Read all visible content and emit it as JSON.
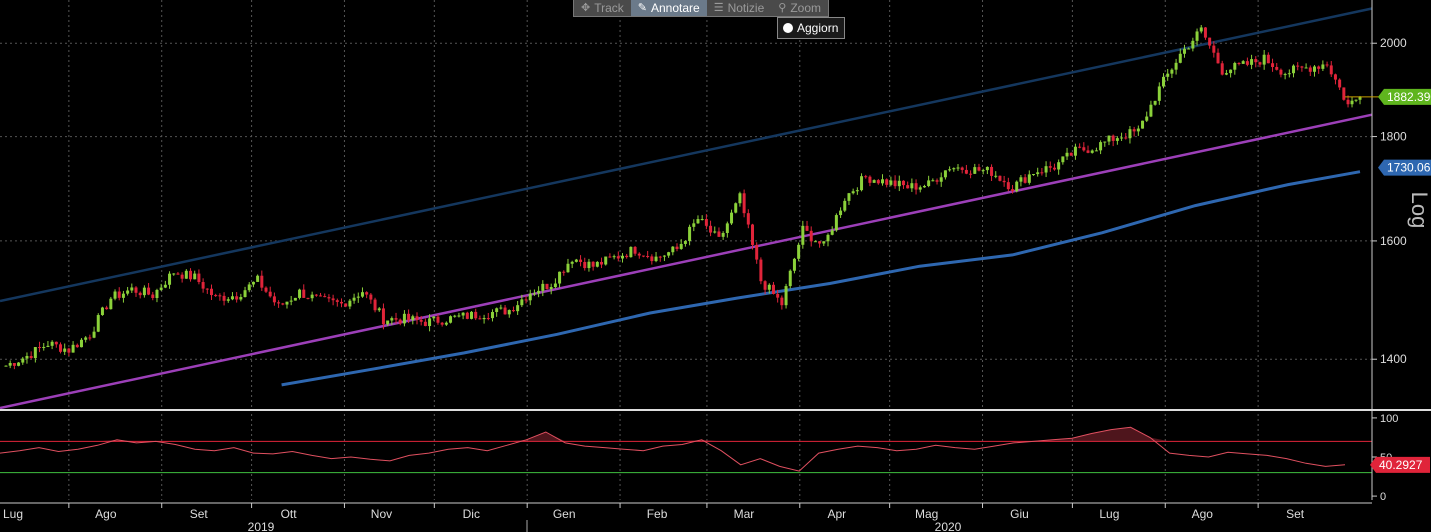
{
  "toolbar": {
    "track_label": "Track",
    "annotate_label": "Annotare",
    "news_label": "Notizie",
    "zoom_label": "Zoom"
  },
  "refresh_label": "Aggiorn",
  "chart_data": [
    {
      "type": "candlestick",
      "title": "",
      "y_ticks": [
        1400,
        1600,
        1800,
        2000
      ],
      "ylim": [
        1325,
        2100
      ],
      "axis_side_label": "Log",
      "x_month_labels": [
        "Lug",
        "Ago",
        "Set",
        "Ott",
        "Nov",
        "Dic",
        "Gen",
        "Feb",
        "Mar",
        "Apr",
        "Mag",
        "Giu",
        "Lug",
        "Ago",
        "Set"
      ],
      "x_year_labels": [
        "2019",
        "2020"
      ],
      "last_price_label": "1882.390",
      "moving_average_label": "1730.06",
      "colors": {
        "up": "#8bd13a",
        "down": "#e0243a",
        "ma": "#2e67b0",
        "upper_channel": "#14375e",
        "lower_channel": "#9c3fb8",
        "last_price_badge": "#5fb51e",
        "ma_badge": "#2e67b0"
      },
      "close_series": [
        {
          "x": "2019-07-01",
          "y": 1390
        },
        {
          "x": "2019-07-08",
          "y": 1405
        },
        {
          "x": "2019-07-15",
          "y": 1425
        },
        {
          "x": "2019-07-22",
          "y": 1415
        },
        {
          "x": "2019-07-29",
          "y": 1440
        },
        {
          "x": "2019-08-05",
          "y": 1500
        },
        {
          "x": "2019-08-12",
          "y": 1515
        },
        {
          "x": "2019-08-19",
          "y": 1505
        },
        {
          "x": "2019-08-26",
          "y": 1545
        },
        {
          "x": "2019-09-02",
          "y": 1535
        },
        {
          "x": "2019-09-09",
          "y": 1500
        },
        {
          "x": "2019-09-16",
          "y": 1505
        },
        {
          "x": "2019-09-23",
          "y": 1530
        },
        {
          "x": "2019-09-30",
          "y": 1485
        },
        {
          "x": "2019-10-07",
          "y": 1510
        },
        {
          "x": "2019-10-14",
          "y": 1495
        },
        {
          "x": "2019-10-21",
          "y": 1490
        },
        {
          "x": "2019-10-28",
          "y": 1512
        },
        {
          "x": "2019-11-04",
          "y": 1465
        },
        {
          "x": "2019-11-11",
          "y": 1465
        },
        {
          "x": "2019-11-18",
          "y": 1460
        },
        {
          "x": "2019-11-25",
          "y": 1465
        },
        {
          "x": "2019-12-02",
          "y": 1470
        },
        {
          "x": "2019-12-09",
          "y": 1475
        },
        {
          "x": "2019-12-16",
          "y": 1480
        },
        {
          "x": "2019-12-23",
          "y": 1510
        },
        {
          "x": "2019-12-30",
          "y": 1525
        },
        {
          "x": "2020-01-06",
          "y": 1570
        },
        {
          "x": "2020-01-13",
          "y": 1555
        },
        {
          "x": "2020-01-20",
          "y": 1570
        },
        {
          "x": "2020-01-27",
          "y": 1585
        },
        {
          "x": "2020-02-03",
          "y": 1570
        },
        {
          "x": "2020-02-10",
          "y": 1585
        },
        {
          "x": "2020-02-17",
          "y": 1640
        },
        {
          "x": "2020-02-24",
          "y": 1600
        },
        {
          "x": "2020-03-02",
          "y": 1680
        },
        {
          "x": "2020-03-09",
          "y": 1530
        },
        {
          "x": "2020-03-16",
          "y": 1490
        },
        {
          "x": "2020-03-23",
          "y": 1620
        },
        {
          "x": "2020-03-30",
          "y": 1590
        },
        {
          "x": "2020-04-06",
          "y": 1680
        },
        {
          "x": "2020-04-13",
          "y": 1720
        },
        {
          "x": "2020-04-20",
          "y": 1710
        },
        {
          "x": "2020-04-27",
          "y": 1700
        },
        {
          "x": "2020-05-04",
          "y": 1705
        },
        {
          "x": "2020-05-11",
          "y": 1740
        },
        {
          "x": "2020-05-18",
          "y": 1735
        },
        {
          "x": "2020-05-25",
          "y": 1730
        },
        {
          "x": "2020-06-01",
          "y": 1700
        },
        {
          "x": "2020-06-08",
          "y": 1730
        },
        {
          "x": "2020-06-15",
          "y": 1740
        },
        {
          "x": "2020-06-22",
          "y": 1770
        },
        {
          "x": "2020-06-29",
          "y": 1780
        },
        {
          "x": "2020-07-06",
          "y": 1800
        },
        {
          "x": "2020-07-13",
          "y": 1810
        },
        {
          "x": "2020-07-20",
          "y": 1900
        },
        {
          "x": "2020-07-27",
          "y": 1975
        },
        {
          "x": "2020-08-03",
          "y": 2030
        },
        {
          "x": "2020-08-10",
          "y": 1940
        },
        {
          "x": "2020-08-17",
          "y": 1950
        },
        {
          "x": "2020-08-24",
          "y": 1965
        },
        {
          "x": "2020-08-31",
          "y": 1935
        },
        {
          "x": "2020-09-07",
          "y": 1945
        },
        {
          "x": "2020-09-14",
          "y": 1955
        },
        {
          "x": "2020-09-21",
          "y": 1865
        },
        {
          "x": "2020-09-25",
          "y": 1882.39
        }
      ],
      "moving_average_series": [
        {
          "x": "2019-10-01",
          "y": 1360
        },
        {
          "x": "2019-11-01",
          "y": 1385
        },
        {
          "x": "2019-12-01",
          "y": 1410
        },
        {
          "x": "2020-01-01",
          "y": 1440
        },
        {
          "x": "2020-02-01",
          "y": 1475
        },
        {
          "x": "2020-03-01",
          "y": 1500
        },
        {
          "x": "2020-04-01",
          "y": 1525
        },
        {
          "x": "2020-05-01",
          "y": 1555
        },
        {
          "x": "2020-06-01",
          "y": 1575
        },
        {
          "x": "2020-07-01",
          "y": 1615
        },
        {
          "x": "2020-08-01",
          "y": 1665
        },
        {
          "x": "2020-09-01",
          "y": 1705
        },
        {
          "x": "2020-09-25",
          "y": 1730.06
        }
      ],
      "channel_lines": [
        {
          "name": "upper",
          "from": {
            "x": "2019-06-29",
            "y": 1495
          },
          "to": {
            "x": "2020-09-29",
            "y": 2080
          }
        },
        {
          "name": "lower",
          "from": {
            "x": "2019-06-29",
            "y": 1325
          },
          "to": {
            "x": "2020-09-29",
            "y": 1845
          }
        }
      ]
    },
    {
      "type": "line",
      "indicator": "RSI",
      "y_ticks": [
        0,
        50,
        100
      ],
      "ylim": [
        -5,
        105
      ],
      "overbought": 70,
      "oversold": 30,
      "last_value_label": "40.2927",
      "values": [
        55,
        58,
        62,
        57,
        60,
        65,
        72,
        68,
        70,
        66,
        60,
        58,
        62,
        55,
        54,
        57,
        52,
        48,
        50,
        47,
        45,
        52,
        55,
        60,
        62,
        58,
        65,
        72,
        82,
        68,
        64,
        62,
        60,
        58,
        64,
        66,
        72,
        58,
        40,
        48,
        38,
        32,
        55,
        60,
        64,
        62,
        58,
        60,
        65,
        62,
        60,
        64,
        68,
        70,
        72,
        74,
        80,
        85,
        88,
        75,
        55,
        52,
        50,
        56,
        54,
        52,
        48,
        42,
        38,
        40
      ]
    }
  ]
}
